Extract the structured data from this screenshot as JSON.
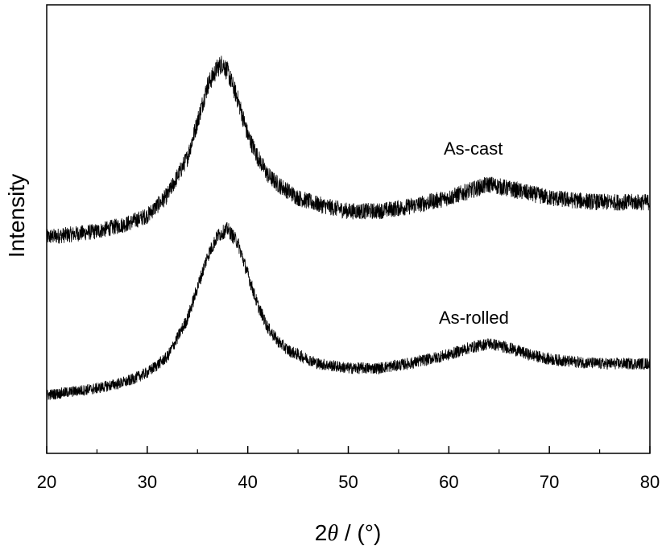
{
  "chart_data": {
    "type": "line",
    "xlabel": "2θ / (°)",
    "xlabel_parts": {
      "pre": "2",
      "theta": "θ",
      "post": " / (°)"
    },
    "ylabel": "Intensity",
    "xlim": [
      20,
      80
    ],
    "ylim": [
      0,
      1
    ],
    "x_ticks": [
      20,
      30,
      40,
      50,
      60,
      70,
      80
    ],
    "x_minor_step": 5,
    "y_ticks_shown": false,
    "grid": false,
    "legend": "none",
    "annotations": [
      "As-cast",
      "As-rolled"
    ],
    "series": [
      {
        "name": "As-cast",
        "x": [
          20,
          25,
          28,
          30,
          32,
          34,
          35,
          36,
          37,
          37.5,
          38,
          39,
          40,
          41,
          42,
          43,
          44,
          45,
          47,
          50,
          53,
          56,
          58,
          60,
          62,
          64,
          66,
          68,
          70,
          72,
          75,
          78,
          80
        ],
        "y": [
          0.482,
          0.495,
          0.512,
          0.53,
          0.575,
          0.66,
          0.74,
          0.82,
          0.86,
          0.87,
          0.85,
          0.79,
          0.71,
          0.66,
          0.62,
          0.6,
          0.585,
          0.57,
          0.555,
          0.54,
          0.54,
          0.55,
          0.56,
          0.57,
          0.585,
          0.6,
          0.59,
          0.58,
          0.57,
          0.565,
          0.56,
          0.56,
          0.56
        ],
        "noise": 0.012
      },
      {
        "name": "As-rolled",
        "x": [
          20,
          25,
          28,
          30,
          32,
          34,
          35,
          36,
          37,
          38,
          39,
          40,
          41,
          42,
          43,
          44,
          45,
          47,
          50,
          53,
          56,
          58,
          60,
          62,
          64,
          66,
          68,
          70,
          72,
          75,
          78,
          80
        ],
        "y": [
          0.13,
          0.145,
          0.16,
          0.18,
          0.215,
          0.3,
          0.37,
          0.44,
          0.485,
          0.5,
          0.47,
          0.4,
          0.33,
          0.28,
          0.25,
          0.23,
          0.22,
          0.2,
          0.19,
          0.19,
          0.2,
          0.21,
          0.22,
          0.235,
          0.245,
          0.235,
          0.22,
          0.21,
          0.205,
          0.2,
          0.2,
          0.2
        ],
        "noise": 0.011
      }
    ]
  }
}
